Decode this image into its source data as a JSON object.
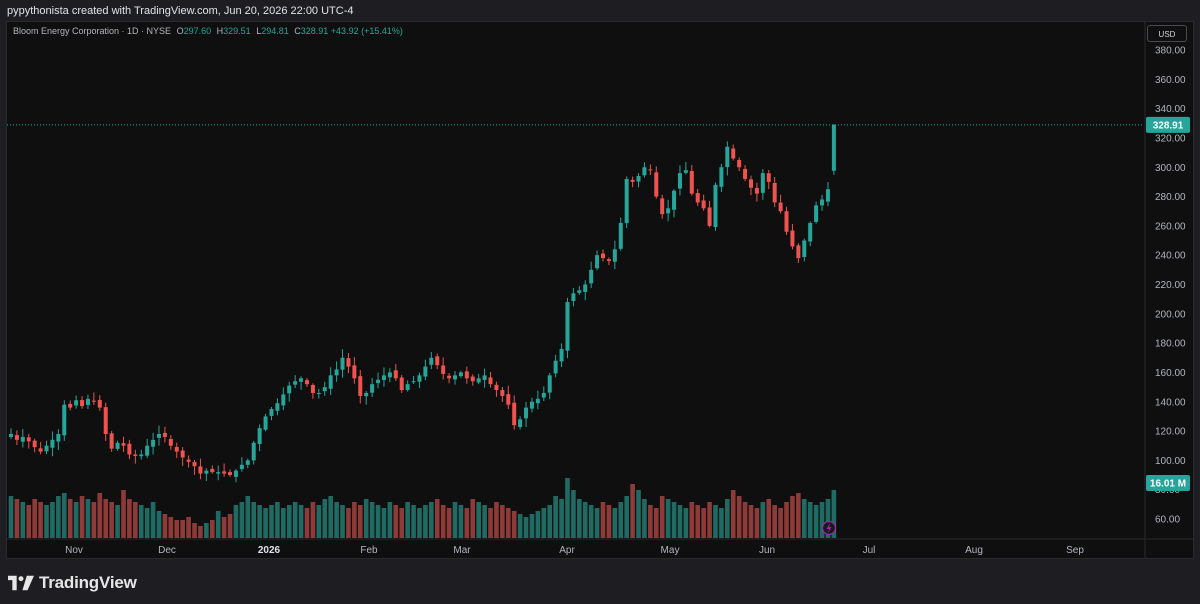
{
  "header": {
    "attribution": "pypythonista created with TradingView.com, Jun 20, 2026 22:00 UTC-4"
  },
  "legend": {
    "symbol": "Bloom Energy Corporation · 1D · NYSE",
    "o_label": "O",
    "o_value": "297.60",
    "h_label": "H",
    "h_value": "329.51",
    "l_label": "L",
    "l_value": "294.81",
    "c_label": "C",
    "c_value": "328.91",
    "change": "+43.92 (+15.41%)"
  },
  "currency": "USD",
  "last_price_badge": "328.91",
  "volume_badge": "16.01 M",
  "brand": "TradingView",
  "colors": {
    "up": "#26a69a",
    "down": "#ef5350",
    "up_volume": "#1f6b64",
    "down_volume": "#8e3a38",
    "background": "#0f0f0f",
    "price_line": "#26a69a",
    "indicator_icon": "#9c27b0"
  },
  "chart_data": {
    "type": "candlestick",
    "y_ticks": [
      "380.00",
      "360.00",
      "340.00",
      "320.00",
      "300.00",
      "280.00",
      "260.00",
      "240.00",
      "220.00",
      "200.00",
      "180.00",
      "160.00",
      "140.00",
      "120.00",
      "100.00",
      "80.00",
      "60.00"
    ],
    "y_tick_values": [
      380,
      360,
      340,
      320,
      300,
      280,
      260,
      240,
      220,
      200,
      180,
      160,
      140,
      120,
      100,
      80,
      60
    ],
    "x_ticks": [
      {
        "label": "Nov",
        "bold": false
      },
      {
        "label": "Dec",
        "bold": false
      },
      {
        "label": "2026",
        "bold": true
      },
      {
        "label": "Feb",
        "bold": false
      },
      {
        "label": "Mar",
        "bold": false
      },
      {
        "label": "Apr",
        "bold": false
      },
      {
        "label": "May",
        "bold": false
      },
      {
        "label": "Jun",
        "bold": false
      },
      {
        "label": "Jul",
        "bold": false
      },
      {
        "label": "Aug",
        "bold": false
      },
      {
        "label": "Sep",
        "bold": false
      }
    ],
    "last_price": 328.91,
    "price_closes": [
      118,
      114,
      116,
      113,
      109,
      106,
      110,
      114,
      118,
      138,
      136,
      141,
      137,
      142,
      140,
      136,
      118,
      108,
      112,
      110,
      104,
      103,
      104,
      110,
      114,
      118,
      116,
      110,
      106,
      102,
      99,
      96,
      91,
      93,
      92,
      92,
      91,
      90,
      93,
      97,
      100,
      112,
      122,
      130,
      135,
      139,
      145,
      151,
      154,
      156,
      152,
      146,
      146,
      150,
      158,
      162,
      170,
      164,
      156,
      144,
      146,
      152,
      155,
      158,
      160,
      156,
      148,
      152,
      154,
      158,
      164,
      170,
      165,
      159,
      156,
      158,
      160,
      156,
      154,
      156,
      158,
      152,
      148,
      144,
      138,
      124,
      128,
      136,
      140,
      142,
      146,
      158,
      168,
      176,
      208,
      214,
      216,
      220,
      230,
      240,
      238,
      236,
      244,
      262,
      292,
      290,
      294,
      300,
      298,
      280,
      268,
      272,
      284,
      296,
      298,
      282,
      276,
      272,
      260,
      288,
      300,
      314,
      306,
      300,
      292,
      286,
      282,
      296,
      290,
      276,
      270,
      256,
      246,
      238,
      250,
      262,
      274,
      278,
      285,
      328.91
    ],
    "volume_profile": [
      14,
      13,
      12,
      11,
      13,
      12,
      11,
      12,
      14,
      15,
      13,
      12,
      14,
      13,
      12,
      15,
      13,
      12,
      11,
      16,
      13,
      12,
      11,
      10,
      12,
      9,
      8,
      7,
      6,
      6,
      7,
      5,
      4,
      5,
      6,
      9,
      7,
      8,
      11,
      12,
      14,
      12,
      11,
      10,
      11,
      12,
      10,
      11,
      12,
      11,
      10,
      12,
      11,
      13,
      14,
      12,
      11,
      10,
      12,
      11,
      13,
      12,
      11,
      10,
      12,
      11,
      10,
      12,
      11,
      10,
      11,
      12,
      13,
      11,
      10,
      12,
      11,
      10,
      13,
      12,
      11,
      10,
      12,
      11,
      10,
      9,
      8,
      7,
      8,
      9,
      10,
      11,
      14,
      13,
      20,
      16,
      13,
      12,
      11,
      10,
      12,
      11,
      10,
      12,
      14,
      18,
      16,
      13,
      11,
      10,
      14,
      13,
      12,
      11,
      10,
      12,
      11,
      10,
      12,
      11,
      10,
      13,
      16,
      14,
      12,
      11,
      10,
      12,
      13,
      11,
      10,
      12,
      14,
      15,
      13,
      12,
      11,
      12,
      13,
      16.01
    ]
  }
}
